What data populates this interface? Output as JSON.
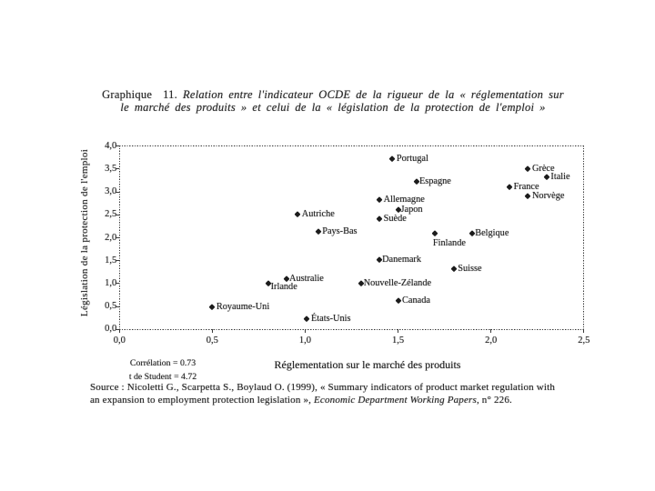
{
  "page": {
    "background_color": "#ffffff",
    "text_color": "#2a2a2a",
    "kind": "scanned document figure"
  },
  "figure": {
    "number_label": "Graphique  11.",
    "title_line1_italic": "Relation entre l'indicateur OCDE de la rigueur de la « réglementation sur",
    "title_line2_italic": "le marché des produits » et celui de la « législation de la protection de l'emploi »"
  },
  "stats": {
    "correlation": "Corrélation = 0.73",
    "student_t": "t de Student = 4.72"
  },
  "source": {
    "text_before_journal": "Source : Nicoletti G., Scarpetta S., Boylaud O. (1999), « Summary indicators of product market regulation with an expansion to employment protection legislation », ",
    "line1": "Source : Nicoletti G., Scarpetta S., Boylaud O. (1999), « Summary indicators of product market regulation with",
    "line2_before_journal": "an expansion to employment protection legislation », ",
    "journal": "Economic Department Working Papers",
    "line2_after_journal": ", n° 226."
  },
  "chart_data": {
    "type": "scatter",
    "title": "Graphique 11. Relation entre l'indicateur OCDE de la rigueur de la « réglementation sur le marché des produits » et celui de la « législation de la protection de l'emploi »",
    "xlabel": "Réglementation sur le marché des produits",
    "ylabel": "Législation de la protection de l'emploi",
    "xlim": [
      0,
      2.5
    ],
    "ylim": [
      0,
      4
    ],
    "x_ticks": [
      "0,0",
      "0,5",
      "1,0",
      "1,5",
      "2,0",
      "2,5"
    ],
    "y_ticks": [
      "4,0",
      "3,5",
      "3,0",
      "2,5",
      "2,0",
      "1,5",
      "1,0",
      "0,5",
      "0,0"
    ],
    "grid": false,
    "legend": false,
    "marker": "diamond",
    "marker_color": "#1c1c1c",
    "points": [
      {
        "label": "Portugal",
        "x": 1.47,
        "y": 3.71,
        "label_pos": "right"
      },
      {
        "label": "Grèce",
        "x": 2.2,
        "y": 3.5,
        "label_pos": "right"
      },
      {
        "label": "Italie",
        "x": 2.3,
        "y": 3.31,
        "label_pos": "right"
      },
      {
        "label": "Espagne",
        "x": 1.6,
        "y": 3.21,
        "label_pos": "right-tight"
      },
      {
        "label": "France",
        "x": 2.1,
        "y": 3.11,
        "label_pos": "right"
      },
      {
        "label": "Norvège",
        "x": 2.2,
        "y": 2.9,
        "label_pos": "right"
      },
      {
        "label": "Allemagne",
        "x": 1.4,
        "y": 2.82,
        "label_pos": "right"
      },
      {
        "label": "Japon",
        "x": 1.5,
        "y": 2.61,
        "label_pos": "right-tight"
      },
      {
        "label": "Autriche",
        "x": 0.96,
        "y": 2.5,
        "label_pos": "right"
      },
      {
        "label": "Suède",
        "x": 1.4,
        "y": 2.4,
        "label_pos": "right"
      },
      {
        "label": "Pays-Bas",
        "x": 1.07,
        "y": 2.13,
        "label_pos": "right"
      },
      {
        "label": "Finlande",
        "x": 1.7,
        "y": 2.09,
        "label_pos": "below"
      },
      {
        "label": "Belgique",
        "x": 1.9,
        "y": 2.09,
        "label_pos": "right-tight"
      },
      {
        "label": "Danemark",
        "x": 1.4,
        "y": 1.52,
        "label_pos": "right-tight"
      },
      {
        "label": "Suisse",
        "x": 1.8,
        "y": 1.31,
        "label_pos": "right"
      },
      {
        "label": "Australie",
        "x": 0.9,
        "y": 1.1,
        "label_pos": "right-tight"
      },
      {
        "label": "Irlande",
        "x": 0.8,
        "y": 1.0,
        "label_pos": "right-low"
      },
      {
        "label": "Nouvelle-Zélande",
        "x": 1.3,
        "y": 1.0,
        "label_pos": "right-tight"
      },
      {
        "label": "Canada",
        "x": 1.5,
        "y": 0.63,
        "label_pos": "right"
      },
      {
        "label": "Royaume-Uni",
        "x": 0.5,
        "y": 0.49,
        "label_pos": "right"
      },
      {
        "label": "États-Unis",
        "x": 1.01,
        "y": 0.23,
        "label_pos": "right"
      }
    ]
  }
}
